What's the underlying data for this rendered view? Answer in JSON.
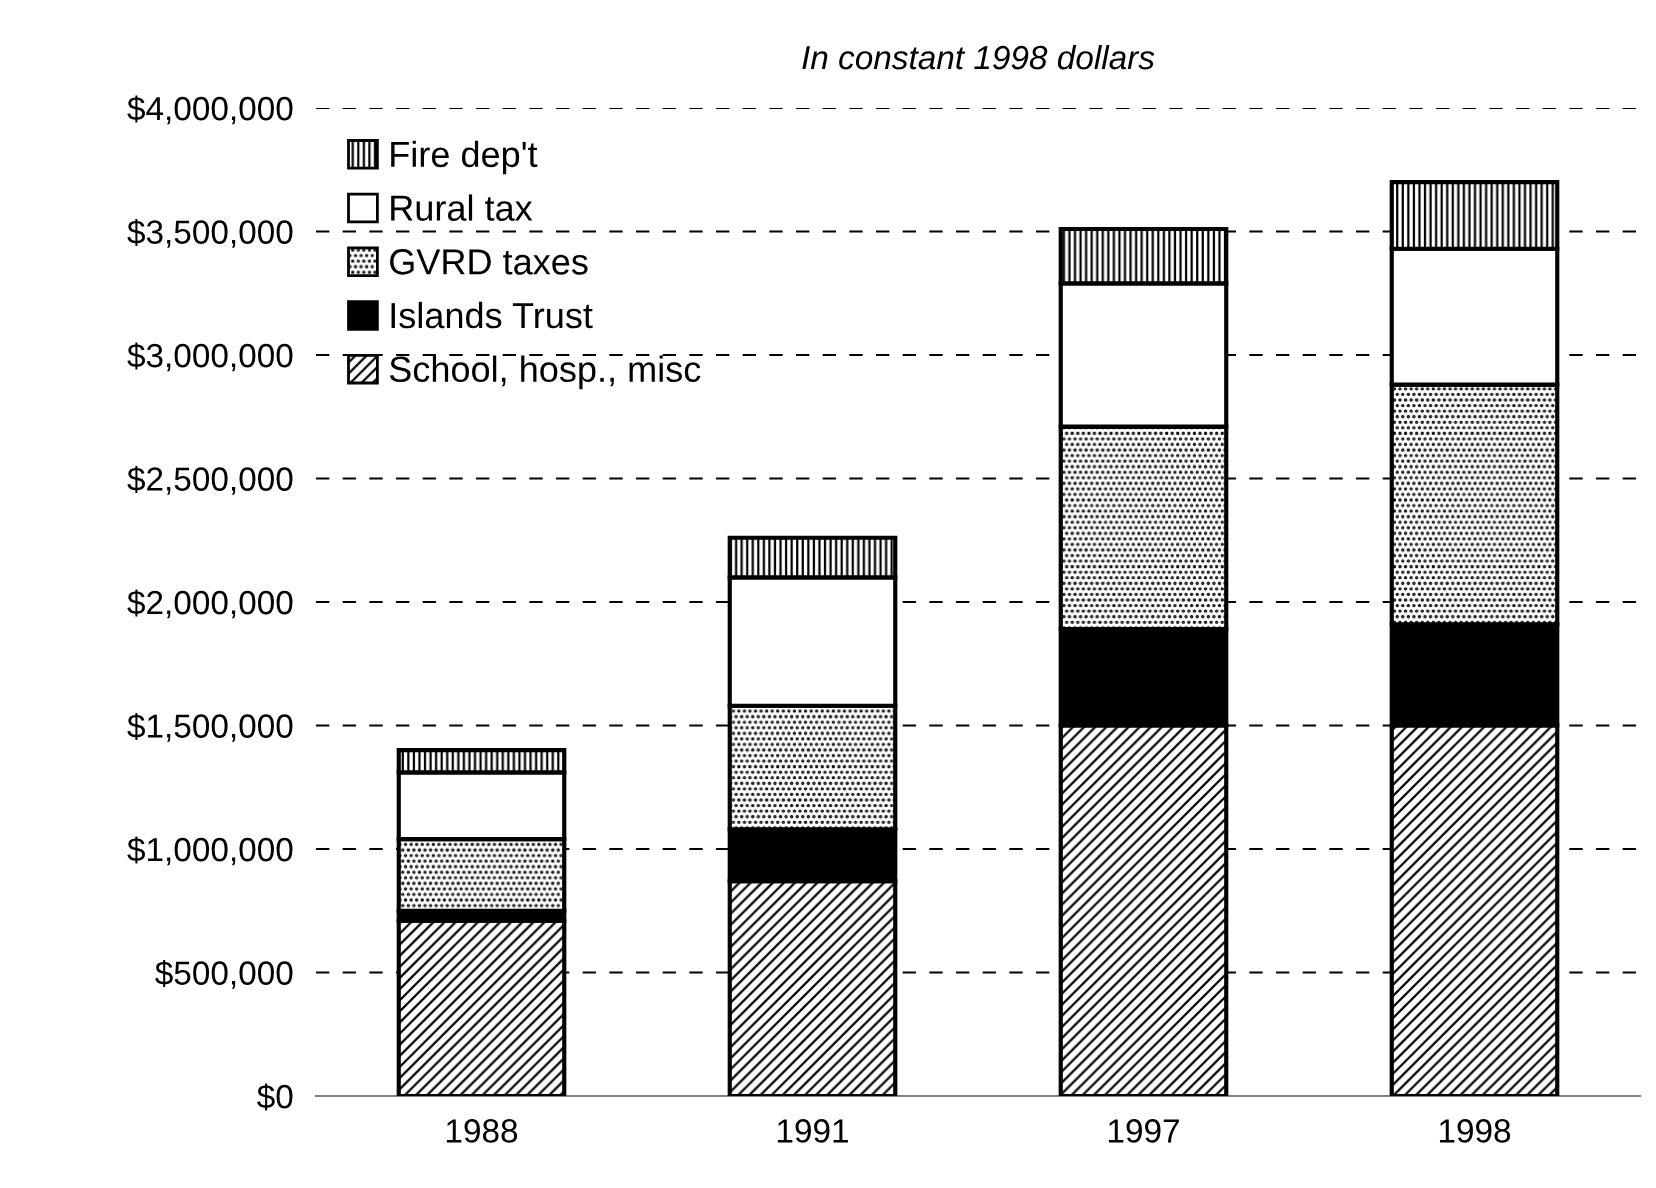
{
  "chart_data": {
    "type": "bar",
    "stacked": true,
    "title": "In constant 1998 dollars",
    "categories": [
      "1988",
      "1991",
      "1997",
      "1998"
    ],
    "series": [
      {
        "name": "School, hosp., misc",
        "color": "#000000",
        "values": [
          710000,
          870000,
          1500000,
          1500000
        ]
      },
      {
        "name": "Islands Trust",
        "color": "#000000",
        "values": [
          40000,
          210000,
          390000,
          410000
        ]
      },
      {
        "name": "GVRD taxes",
        "color": "#000000",
        "values": [
          290000,
          500000,
          820000,
          970000
        ]
      },
      {
        "name": "Rural tax",
        "color": "#ffffff",
        "values": [
          270000,
          520000,
          580000,
          550000
        ]
      },
      {
        "name": "Fire dep't",
        "color": "#000000",
        "values": [
          90000,
          160000,
          220000,
          270000
        ]
      }
    ],
    "ylim": [
      0,
      4000000
    ],
    "yticks": [
      {
        "value": 0,
        "label": "$0"
      },
      {
        "value": 500000,
        "label": "$500,000"
      },
      {
        "value": 1000000,
        "label": "$1,000,000"
      },
      {
        "value": 1500000,
        "label": "$1,500,000"
      },
      {
        "value": 2000000,
        "label": "$2,000,000"
      },
      {
        "value": 2500000,
        "label": "$2,500,000"
      },
      {
        "value": 3000000,
        "label": "$3,000,000"
      },
      {
        "value": 3500000,
        "label": "$3,500,000"
      },
      {
        "value": 4000000,
        "label": "$4,000,000"
      }
    ],
    "grid": "y",
    "legend": "top left"
  }
}
